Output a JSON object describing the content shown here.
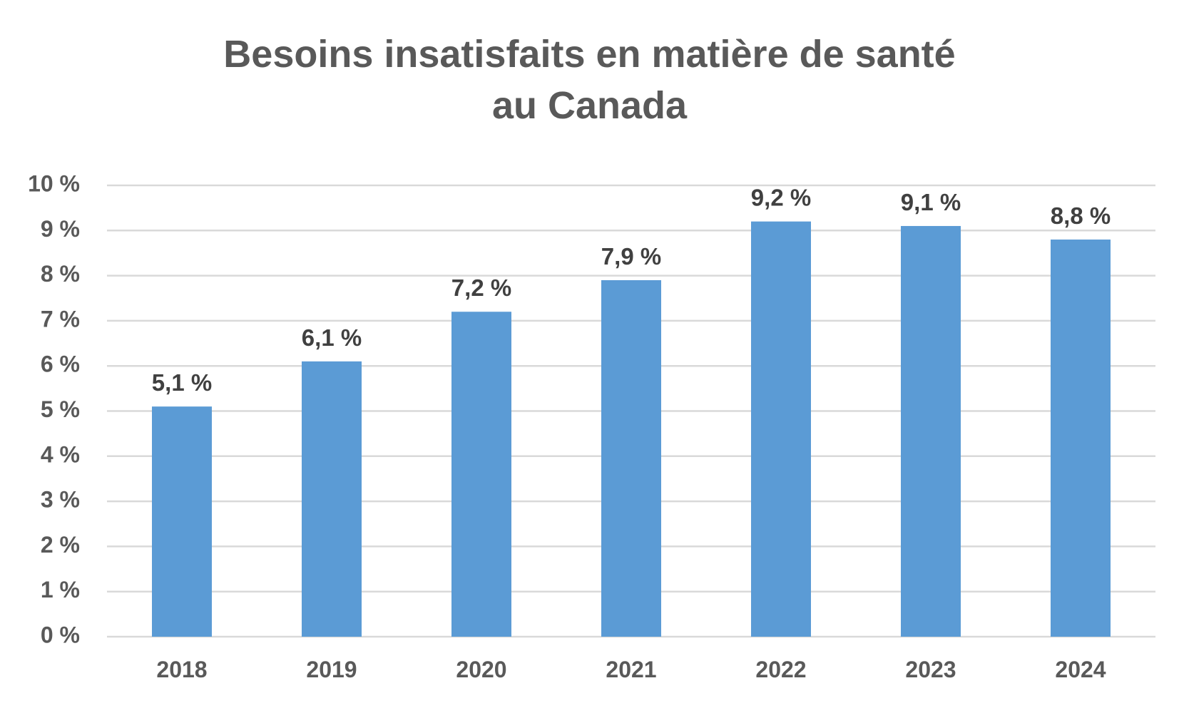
{
  "chart_data": {
    "type": "bar",
    "title": [
      "Besoins insatisfaits en matière de santé",
      "au Canada"
    ],
    "categories": [
      "2018",
      "2019",
      "2020",
      "2021",
      "2022",
      "2023",
      "2024"
    ],
    "values": [
      5.1,
      6.1,
      7.2,
      7.9,
      9.2,
      9.1,
      8.8
    ],
    "data_labels": [
      "5,1 %",
      "6,1 %",
      "7,2 %",
      "7,9 %",
      "9,2 %",
      "9,1 %",
      "8,8 %"
    ],
    "ylim": [
      0,
      10
    ],
    "yticks": [
      0,
      1,
      2,
      3,
      4,
      5,
      6,
      7,
      8,
      9,
      10
    ],
    "ytick_labels": [
      "0 %",
      "1 %",
      "2 %",
      "3 %",
      "4 %",
      "5 %",
      "6 %",
      "7 %",
      "8 %",
      "9 %",
      "10 %"
    ],
    "xlabel": "",
    "ylabel": "",
    "grid": true,
    "legend": "none",
    "colors": {
      "bar": "#5b9bd5",
      "grid": "#d9d9d9",
      "text": "#595959",
      "label": "#404040"
    }
  }
}
